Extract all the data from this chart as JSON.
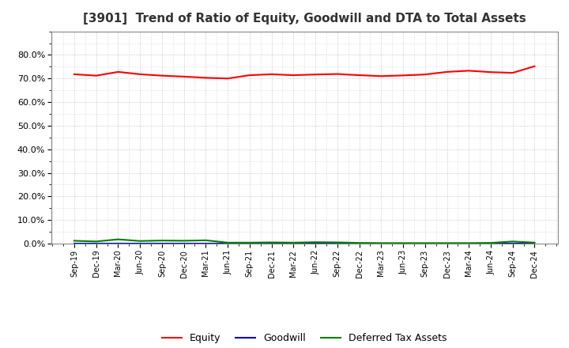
{
  "title": "[3901]  Trend of Ratio of Equity, Goodwill and DTA to Total Assets",
  "x_labels": [
    "Sep-19",
    "Dec-19",
    "Mar-20",
    "Jun-20",
    "Sep-20",
    "Dec-20",
    "Mar-21",
    "Jun-21",
    "Sep-21",
    "Dec-21",
    "Mar-22",
    "Jun-22",
    "Sep-22",
    "Dec-22",
    "Mar-23",
    "Jun-23",
    "Sep-23",
    "Dec-23",
    "Mar-24",
    "Jun-24",
    "Sep-24",
    "Dec-24"
  ],
  "equity": [
    0.718,
    0.712,
    0.728,
    0.718,
    0.712,
    0.708,
    0.703,
    0.7,
    0.714,
    0.718,
    0.714,
    0.717,
    0.719,
    0.714,
    0.71,
    0.713,
    0.717,
    0.728,
    0.733,
    0.727,
    0.724,
    0.752
  ],
  "goodwill": [
    0.0,
    0.0,
    0.0,
    0.0,
    0.0,
    0.0,
    0.0,
    0.0,
    0.0,
    0.0,
    0.0,
    0.0,
    0.0,
    0.0,
    0.0,
    0.0,
    0.0,
    0.0,
    0.0,
    0.0,
    0.0,
    0.0
  ],
  "dta": [
    0.012,
    0.009,
    0.018,
    0.011,
    0.013,
    0.012,
    0.014,
    0.004,
    0.004,
    0.005,
    0.004,
    0.006,
    0.005,
    0.003,
    0.002,
    0.002,
    0.002,
    0.002,
    0.002,
    0.003,
    0.009,
    0.004
  ],
  "equity_color": "#ff0000",
  "goodwill_color": "#0000cc",
  "dta_color": "#008000",
  "ylim": [
    0.0,
    0.9
  ],
  "yticks": [
    0.0,
    0.1,
    0.2,
    0.3,
    0.4,
    0.5,
    0.6,
    0.7,
    0.8
  ],
  "background_color": "#ffffff",
  "plot_bg_color": "#ffffff",
  "grid_color": "#999999",
  "title_fontsize": 11,
  "legend_labels": [
    "Equity",
    "Goodwill",
    "Deferred Tax Assets"
  ]
}
